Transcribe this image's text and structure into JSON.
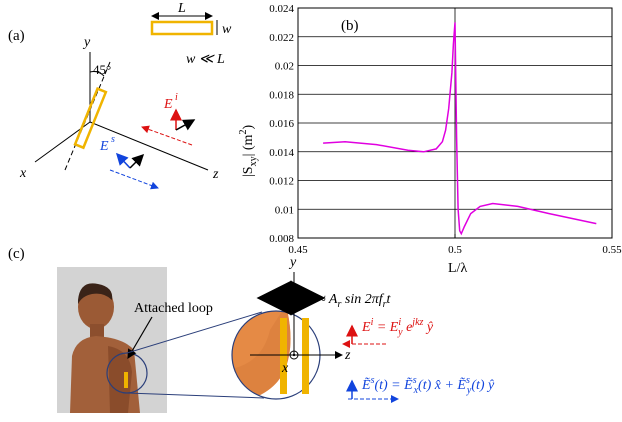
{
  "panel_a": {
    "label": "(a)",
    "dim_L": "L",
    "dim_w": "w",
    "condition": "w ≪ L",
    "axis_y": "y",
    "axis_x": "x",
    "axis_z": "z",
    "angle": "45°",
    "field_incident": "E",
    "field_incident_sup": "i",
    "field_scattered": "E",
    "field_scattered_sup": "s",
    "colors": {
      "loop": "#f0b400",
      "incident": "#dd1111",
      "scattered": "#1144dd"
    }
  },
  "panel_b": {
    "label": "(b)",
    "ylabel": "|S",
    "ylabel_sub": "xy",
    "ylabel_unit": "|   (m",
    "ylabel_sup": "2",
    "ylabel_close": ")",
    "xlabel": "L/λ",
    "xticks": [
      "0.45",
      "0.5",
      "0.55"
    ],
    "yticks": [
      "0.008",
      "0.01",
      "0.012",
      "0.014",
      "0.016",
      "0.018",
      "0.02",
      "0.022",
      "0.024"
    ],
    "curve_color": "#e000e0"
  },
  "chart_data": {
    "type": "line",
    "xlabel": "L/λ",
    "ylabel": "|Sxy| (m2)",
    "xlim": [
      0.45,
      0.55
    ],
    "ylim": [
      0.008,
      0.024
    ],
    "grid": "horizontal",
    "series": [
      {
        "x": [
          0.458,
          0.465,
          0.475,
          0.485,
          0.49,
          0.494,
          0.496,
          0.497,
          0.498,
          0.499,
          0.4995,
          0.5,
          0.5005,
          0.501,
          0.5015,
          0.502,
          0.503,
          0.505,
          0.508,
          0.512,
          0.52,
          0.53,
          0.545
        ],
        "values": [
          0.0146,
          0.0147,
          0.0145,
          0.0141,
          0.014,
          0.0142,
          0.0147,
          0.0155,
          0.017,
          0.0195,
          0.0215,
          0.023,
          0.015,
          0.01,
          0.0085,
          0.0083,
          0.0088,
          0.0097,
          0.0102,
          0.0104,
          0.0102,
          0.0097,
          0.009
        ]
      }
    ]
  },
  "panel_c": {
    "label": "(c)",
    "attached_loop": "Attached loop",
    "axis_y": "y",
    "axis_z": "z",
    "axis_x": "x",
    "vibration_lhs": "≈ A",
    "vibration_sub": "r",
    "vibration_rhs": " sin 2πf",
    "vibration_sub2": "r",
    "vibration_end": "t",
    "eq_incident": "E^i = E_y^i e^{jkz} ŷ",
    "eq_scattered": "Ẽ^s(t) = Ẽ_x^s(t) x̂ + Ẽ_y^s(t) ŷ"
  }
}
